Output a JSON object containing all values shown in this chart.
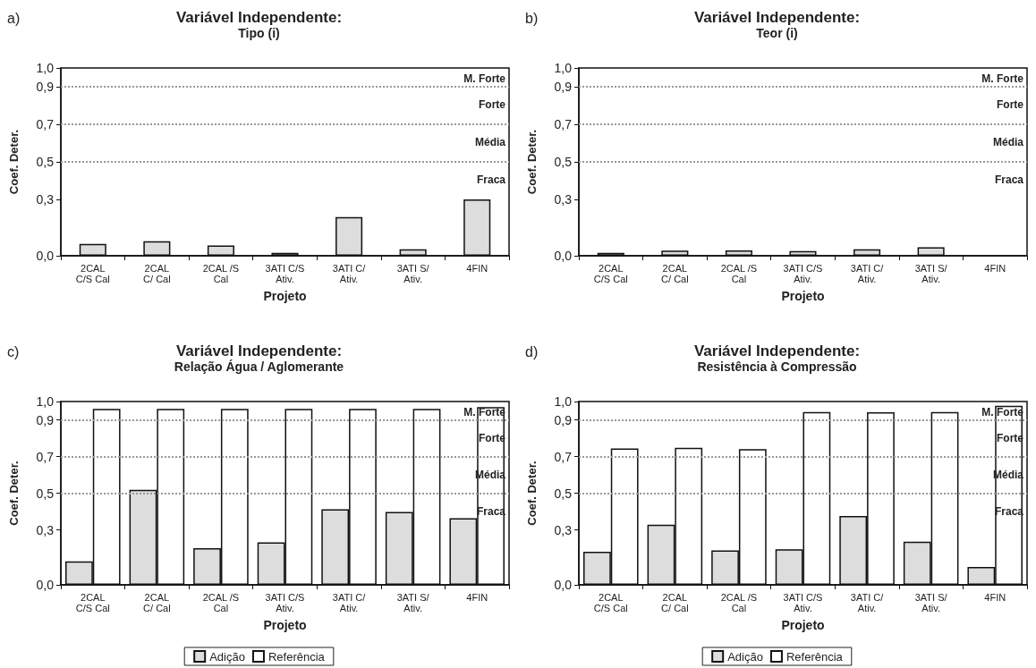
{
  "chart_data": [
    {
      "type": "bar",
      "title": "Variável Independente:",
      "subtitle": "Tipo (i)",
      "annotations": [
        "a)",
        "M. Forte",
        "Forte",
        "Média",
        "Fraca"
      ],
      "xlabel": "Projeto",
      "ylabel": "Coef. Deter.",
      "categories": [
        "2CAL\nC/S Cal",
        "2CAL\nC/ Cal",
        "2CAL /S\nCal",
        "3ATI C/S\nAtiv.",
        "3ATI C/\nAtiv.",
        "3ATI S/\nAtiv.",
        "4FIN"
      ],
      "values": [
        0.063,
        0.077,
        0.055,
        0.016,
        0.206,
        0.034,
        0.3
      ],
      "color": "#dddddd",
      "ylim": [
        0,
        1
      ],
      "yticks": [
        {
          "value": 0,
          "label": "0,0"
        },
        {
          "value": 0.3,
          "label": "0,3"
        },
        {
          "value": 0.5,
          "label": "0,5"
        },
        {
          "value": 0.7,
          "label": "0,7"
        },
        {
          "value": 0.9,
          "label": "0,9"
        },
        {
          "value": 1,
          "label": "1,0"
        }
      ],
      "ref_lines": [
        {
          "axis": "y",
          "value": 0.5,
          "color": "#999999",
          "line_style": "dotted"
        },
        {
          "axis": "y",
          "value": 0.7,
          "color": "#999999",
          "line_style": "dotted"
        },
        {
          "axis": "y",
          "value": 0.9,
          "color": "#999999",
          "line_style": "dotted"
        }
      ]
    },
    {
      "type": "bar",
      "title": "Variável Independente:",
      "subtitle": "Teor (i)",
      "annotations": [
        "b)",
        "M. Forte",
        "Forte",
        "Média",
        "Fraca"
      ],
      "xlabel": "Projeto",
      "ylabel": "Coef. Deter.",
      "categories": [
        "2CAL\nC/S Cal",
        "2CAL\nC/ Cal",
        "2CAL /S\nCal",
        "3ATI C/S\nAtiv.",
        "3ATI C/\nAtiv.",
        "3ATI S/\nAtiv.",
        "4FIN"
      ],
      "values": [
        0.016,
        0.027,
        0.029,
        0.025,
        0.034,
        0.045,
        null
      ],
      "color": "#dddddd",
      "ylim": [
        0,
        1
      ],
      "yticks": [
        {
          "value": 0,
          "label": "0,0"
        },
        {
          "value": 0.3,
          "label": "0,3"
        },
        {
          "value": 0.5,
          "label": "0,5"
        },
        {
          "value": 0.7,
          "label": "0,7"
        },
        {
          "value": 0.9,
          "label": "0,9"
        },
        {
          "value": 1,
          "label": "1,0"
        }
      ],
      "ref_lines": [
        {
          "axis": "y",
          "value": 0.5,
          "color": "#999999",
          "line_style": "dotted"
        },
        {
          "axis": "y",
          "value": 0.7,
          "color": "#999999",
          "line_style": "dotted"
        },
        {
          "axis": "y",
          "value": 0.9,
          "color": "#999999",
          "line_style": "dotted"
        }
      ]
    },
    {
      "type": "bar",
      "title": "Variável Independente:",
      "subtitle": "Relação Água / Aglomerante",
      "annotations": [
        "c)",
        "M. Forte",
        "Forte",
        "Média",
        "Fraca"
      ],
      "xlabel": "Projeto",
      "ylabel": "Coef. Deter.",
      "legend": "bottom",
      "categories": [
        "2CAL\nC/S Cal",
        "2CAL\nC/ Cal",
        "2CAL /S\nCal",
        "3ATI C/S\nAtiv.",
        "3ATI C/\nAtiv.",
        "3ATI S/\nAtiv.",
        "4FIN"
      ],
      "series": [
        {
          "name": "Adição",
          "color": "#dddddd",
          "values": [
            0.128,
            0.518,
            0.2,
            0.232,
            0.412,
            0.397,
            0.363
          ]
        },
        {
          "name": "Referência",
          "color": "#ffffff",
          "values": [
            0.96,
            0.96,
            0.96,
            0.96,
            0.96,
            0.96,
            0.97
          ]
        }
      ],
      "ylim": [
        0,
        1
      ],
      "yticks": [
        {
          "value": 0,
          "label": "0,0"
        },
        {
          "value": 0.3,
          "label": "0,3"
        },
        {
          "value": 0.5,
          "label": "0,5"
        },
        {
          "value": 0.7,
          "label": "0,7"
        },
        {
          "value": 0.9,
          "label": "0,9"
        },
        {
          "value": 1,
          "label": "1,0"
        }
      ],
      "ref_lines": [
        {
          "axis": "y",
          "value": 0.5,
          "color": "#999999",
          "line_style": "dotted"
        },
        {
          "axis": "y",
          "value": 0.7,
          "color": "#999999",
          "line_style": "dotted"
        },
        {
          "axis": "y",
          "value": 0.9,
          "color": "#999999",
          "line_style": "dotted"
        }
      ]
    },
    {
      "type": "bar",
      "title": "Variável Independente:",
      "subtitle": "Resistência à Compressão",
      "annotations": [
        "d)",
        "M. Forte",
        "Forte",
        "Média",
        "Fraca"
      ],
      "xlabel": "Projeto",
      "ylabel": "Coef. Deter.",
      "legend": "bottom",
      "categories": [
        "2CAL\nC/S Cal",
        "2CAL\nC/ Cal",
        "2CAL /S\nCal",
        "3ATI C/S\nAtiv.",
        "3ATI C/\nAtiv.",
        "3ATI S/\nAtiv.",
        "4FIN"
      ],
      "series": [
        {
          "name": "Adição",
          "color": "#dddddd",
          "values": [
            0.181,
            0.328,
            0.188,
            0.194,
            0.376,
            0.235,
            0.097
          ]
        },
        {
          "name": "Referência",
          "color": "#ffffff",
          "values": [
            0.744,
            0.747,
            0.74,
            0.943,
            0.941,
            0.943,
            0.977
          ]
        }
      ],
      "ylim": [
        0,
        1
      ],
      "yticks": [
        {
          "value": 0,
          "label": "0,0"
        },
        {
          "value": 0.3,
          "label": "0,3"
        },
        {
          "value": 0.5,
          "label": "0,5"
        },
        {
          "value": 0.7,
          "label": "0,7"
        },
        {
          "value": 0.9,
          "label": "0,9"
        },
        {
          "value": 1,
          "label": "1,0"
        }
      ],
      "ref_lines": [
        {
          "axis": "y",
          "value": 0.5,
          "color": "#999999",
          "line_style": "dotted"
        },
        {
          "axis": "y",
          "value": 0.7,
          "color": "#999999",
          "line_style": "dotted"
        },
        {
          "axis": "y",
          "value": 0.9,
          "color": "#999999",
          "line_style": "dotted"
        }
      ]
    }
  ]
}
